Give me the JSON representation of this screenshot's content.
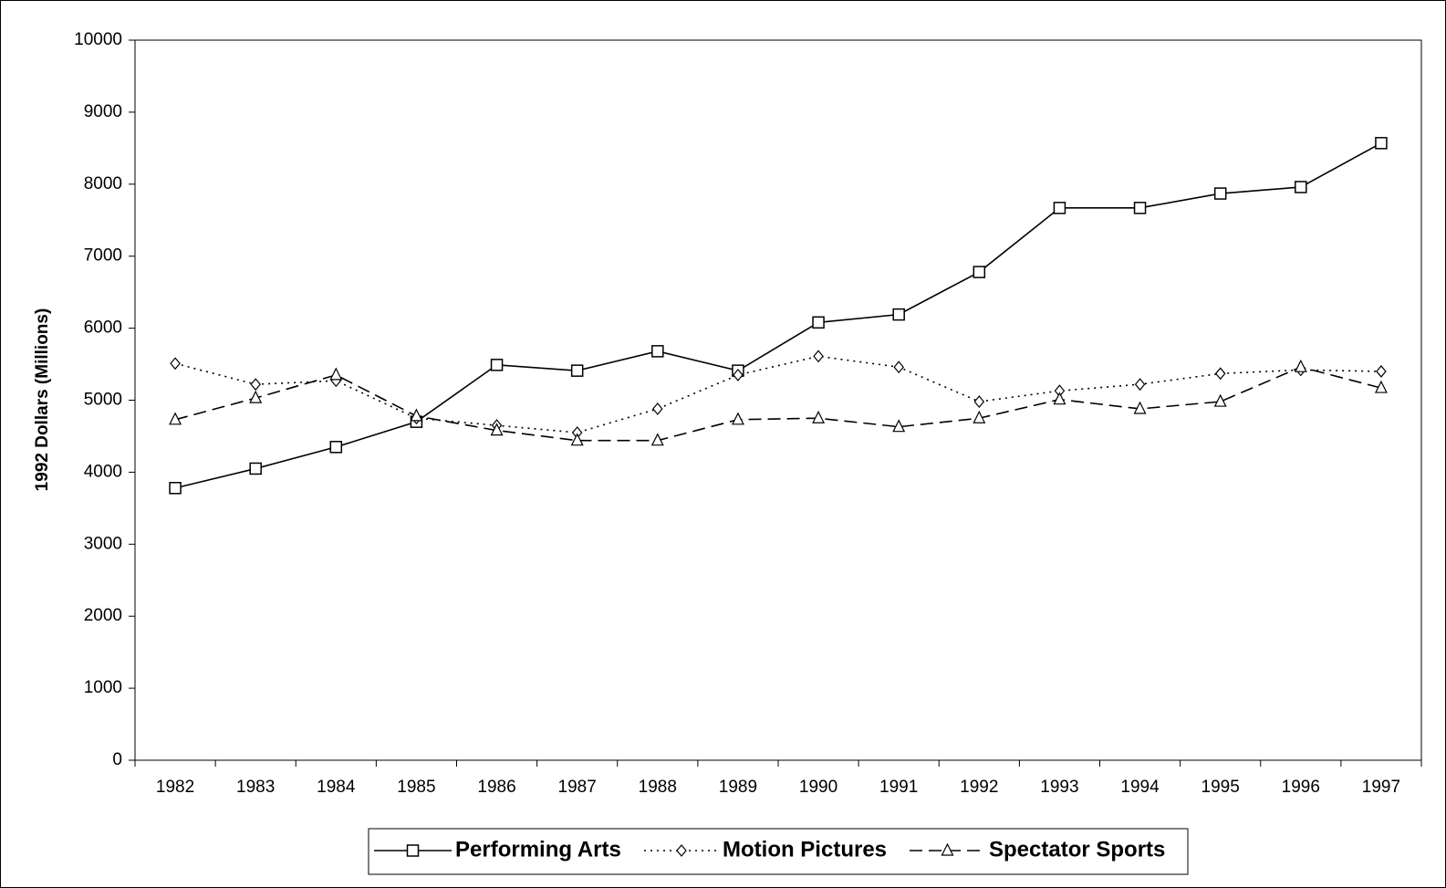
{
  "chart_data": {
    "type": "line",
    "y_label": "1992 Dollars (Millions)",
    "categories": [
      "1982",
      "1983",
      "1984",
      "1985",
      "1986",
      "1987",
      "1988",
      "1989",
      "1990",
      "1991",
      "1992",
      "1993",
      "1994",
      "1995",
      "1996",
      "1997"
    ],
    "series": [
      {
        "name": "Performing Arts",
        "color": "#000000",
        "dash": "solid",
        "marker": "square",
        "values": [
          3780,
          4050,
          4350,
          4700,
          5490,
          5410,
          5680,
          5410,
          6080,
          6190,
          6780,
          7670,
          7670,
          7870,
          7960,
          8570
        ]
      },
      {
        "name": "Motion Pictures",
        "color": "#000000",
        "dash": "dotted",
        "marker": "diamond",
        "values": [
          5510,
          5220,
          5270,
          4750,
          4650,
          4550,
          4880,
          5350,
          5610,
          5460,
          4980,
          5130,
          5220,
          5370,
          5420,
          5400
        ]
      },
      {
        "name": "Spectator Sports",
        "color": "#000000",
        "dash": "dashed",
        "marker": "triangle",
        "values": [
          4730,
          5030,
          5350,
          4780,
          4580,
          4440,
          4440,
          4730,
          4750,
          4630,
          4750,
          5010,
          4880,
          4980,
          5460,
          5170
        ]
      }
    ],
    "ylim": [
      0,
      10000
    ],
    "yticks": [
      0,
      1000,
      2000,
      3000,
      4000,
      5000,
      6000,
      7000,
      8000,
      9000,
      10000
    ],
    "grid": false,
    "legend": "bottom"
  }
}
